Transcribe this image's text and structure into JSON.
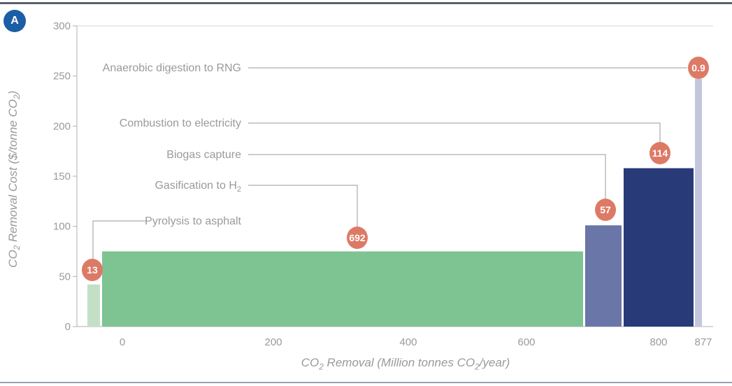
{
  "panel_label": "A",
  "chart_data": {
    "type": "bar",
    "title": "",
    "ylabel": "CO2 Removal Cost ($/tonne CO2)",
    "xlabel": "CO2 Removal (Million tonnes CO2/year)",
    "ylim": [
      0,
      300
    ],
    "y_ticks": [
      "0",
      "50",
      "100",
      "150",
      "200",
      "250",
      "300"
    ],
    "x_ticks": [
      "0",
      "200",
      "400",
      "600",
      "800",
      "877"
    ],
    "bars": [
      {
        "name": "Pyrolysis to asphalt",
        "removal": 13,
        "removal_label": "13",
        "cost": 42,
        "color": "#c3e0c7"
      },
      {
        "name": "Gasification to H2",
        "removal": 692,
        "removal_label": "692",
        "cost": 75,
        "color": "#7ec493"
      },
      {
        "name": "Biogas capture",
        "removal": 57,
        "removal_label": "57",
        "cost": 101,
        "color": "#6a76a8"
      },
      {
        "name": "Combustion to electricity",
        "removal": 114,
        "removal_label": "114",
        "cost": 158,
        "color": "#283a78"
      },
      {
        "name": "Anaerobic digestion to RNG",
        "removal": 0.9,
        "removal_label": "0.9",
        "cost": 247,
        "color": "#c3c6dd"
      }
    ]
  },
  "colors": {
    "badge": "#1c5ea6",
    "callout": "#dd7a66",
    "axis": "#b0b0b0",
    "text": "#9a9a9a"
  }
}
